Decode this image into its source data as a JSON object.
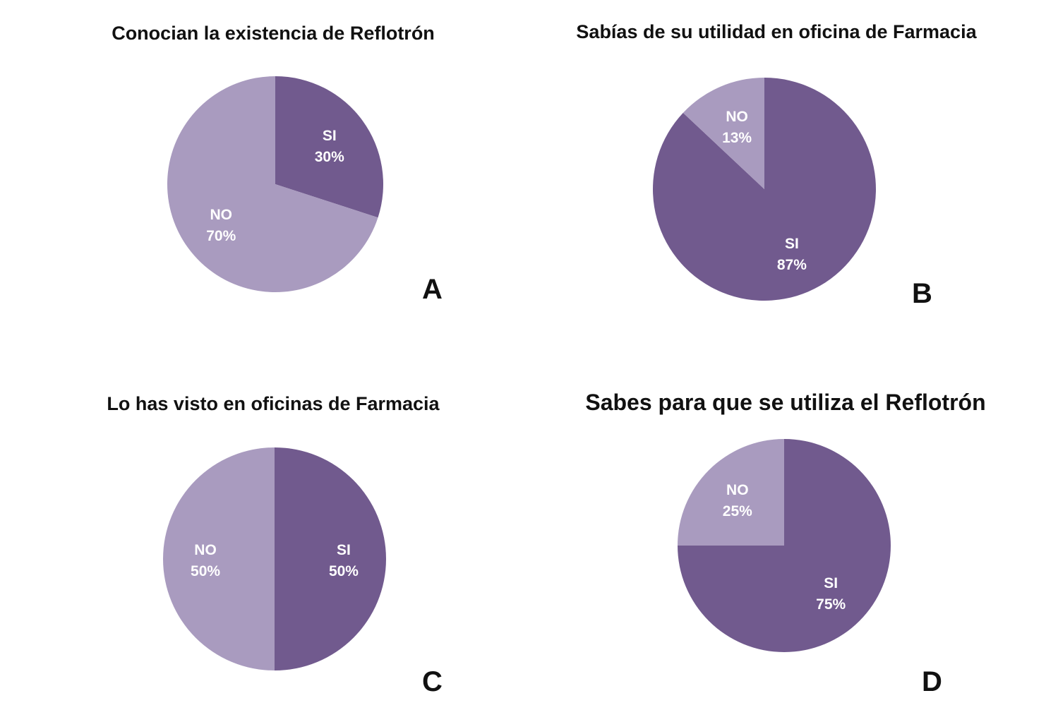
{
  "colors": {
    "si": "#715a8e",
    "no": "#a99bbf"
  },
  "chart_data": [
    {
      "type": "pie",
      "panel": "A",
      "title": "Conocian la existencia de Reflotrón",
      "slices": [
        {
          "label": "SI",
          "value": 30,
          "value_label": "30%"
        },
        {
          "label": "NO",
          "value": 70,
          "value_label": "70%"
        }
      ]
    },
    {
      "type": "pie",
      "panel": "B",
      "title": "Sabías de su utilidad en oficina de Farmacia",
      "slices": [
        {
          "label": "SI",
          "value": 87,
          "value_label": "87%"
        },
        {
          "label": "NO",
          "value": 13,
          "value_label": "13%"
        }
      ]
    },
    {
      "type": "pie",
      "panel": "C",
      "title": "Lo has visto en oficinas de Farmacia",
      "slices": [
        {
          "label": "SI",
          "value": 50,
          "value_label": "50%"
        },
        {
          "label": "NO",
          "value": 50,
          "value_label": "50%"
        }
      ]
    },
    {
      "type": "pie",
      "panel": "D",
      "title": "Sabes para que se utiliza el Reflotrón",
      "slices": [
        {
          "label": "SI",
          "value": 75,
          "value_label": "75%"
        },
        {
          "label": "NO",
          "value": 25,
          "value_label": "25%"
        }
      ]
    }
  ]
}
